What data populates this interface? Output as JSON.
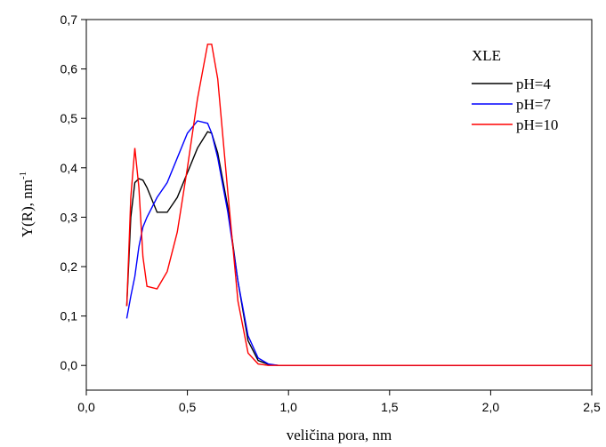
{
  "chart_data": {
    "type": "line",
    "x_label": "veličina pora, nm",
    "y_label": {
      "text": "Y(R), nm",
      "superscript": "-1"
    },
    "legend_title": "XLE",
    "legend_position": "upper right",
    "x": [
      0.2,
      0.22,
      0.24,
      0.26,
      0.28,
      0.3,
      0.35,
      0.4,
      0.45,
      0.5,
      0.55,
      0.6,
      0.62,
      0.65,
      0.7,
      0.75,
      0.8,
      0.85,
      0.9,
      0.95,
      1.0,
      1.5,
      2.0,
      2.5
    ],
    "series": [
      {
        "name": "pH=4",
        "color": "#000000",
        "values": [
          0.12,
          0.3,
          0.37,
          0.378,
          0.375,
          0.36,
          0.31,
          0.31,
          0.34,
          0.39,
          0.44,
          0.473,
          0.47,
          0.43,
          0.32,
          0.17,
          0.05,
          0.01,
          0.002,
          0,
          0,
          0,
          0,
          0
        ]
      },
      {
        "name": "pH=7",
        "color": "#0000ff",
        "values": [
          0.095,
          0.14,
          0.18,
          0.24,
          0.28,
          0.3,
          0.34,
          0.37,
          0.42,
          0.47,
          0.495,
          0.49,
          0.47,
          0.42,
          0.31,
          0.17,
          0.06,
          0.015,
          0.003,
          0,
          0,
          0,
          0,
          0
        ]
      },
      {
        "name": "pH=10",
        "color": "#ff0000",
        "values": [
          0.12,
          0.34,
          0.44,
          0.36,
          0.22,
          0.16,
          0.155,
          0.19,
          0.27,
          0.4,
          0.54,
          0.65,
          0.65,
          0.58,
          0.35,
          0.13,
          0.025,
          0.003,
          0,
          0,
          0,
          0,
          0,
          0
        ]
      }
    ],
    "xlim": [
      0,
      2.5
    ],
    "xticks": [
      {
        "value": 0,
        "label": "0,0"
      },
      {
        "value": 0.5,
        "label": "0,5"
      },
      {
        "value": 1,
        "label": "1,0"
      },
      {
        "value": 1.5,
        "label": "1,5"
      },
      {
        "value": 2,
        "label": "2,0"
      },
      {
        "value": 2.5,
        "label": "2,5"
      }
    ],
    "ylim": [
      -0.05,
      0.7
    ],
    "yticks": [
      {
        "value": 0,
        "label": "0,0"
      },
      {
        "value": 0.1,
        "label": "0,1"
      },
      {
        "value": 0.2,
        "label": "0,2"
      },
      {
        "value": 0.3,
        "label": "0,3"
      },
      {
        "value": 0.4,
        "label": "0,4"
      },
      {
        "value": 0.5,
        "label": "0,5"
      },
      {
        "value": 0.6,
        "label": "0,6"
      },
      {
        "value": 0.7,
        "label": "0,7"
      }
    ]
  }
}
